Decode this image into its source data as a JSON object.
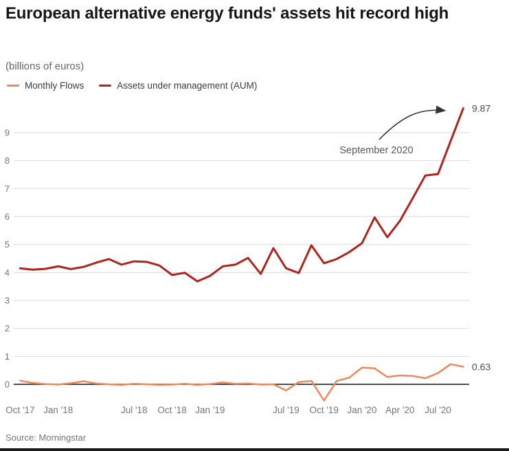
{
  "header": {
    "title": "European alternative energy funds' assets hit record high",
    "subtitle": "(billions of euros)"
  },
  "legend": [
    {
      "label": "Monthly Flows",
      "color": "#ef875a"
    },
    {
      "label": "Assets under management (AUM)",
      "color": "#b0231d"
    }
  ],
  "annotation": {
    "text": "September 2020"
  },
  "end_labels": {
    "aum": "9.87",
    "flows": "0.63"
  },
  "source": "Source: Morningstar",
  "colors": {
    "gridline": "#d9d9d9",
    "zero_line": "#4d4d4d",
    "tick_label": "#757575",
    "annotation_text": "#595959",
    "arrow": "#333333",
    "end_label": "#4d4d4d"
  },
  "chart_data": {
    "type": "line",
    "title": "European alternative energy funds' assets hit record high",
    "subtitle": "(billions of euros)",
    "xlabel": "",
    "ylabel": "billions of euros",
    "ylim": [
      -0.7,
      10
    ],
    "yticks": [
      0,
      1,
      2,
      3,
      4,
      5,
      6,
      7,
      8,
      9
    ],
    "grid": true,
    "legend_position": "top-left",
    "annotations": [
      {
        "text": "September 2020",
        "points_to": "Sep '20 AUM value 9.87"
      }
    ],
    "x": [
      "Oct '17",
      "Nov '17",
      "Dec '17",
      "Jan '18",
      "Feb '18",
      "Mar '18",
      "Apr '18",
      "May '18",
      "Jun '18",
      "Jul '18",
      "Aug '18",
      "Sep '18",
      "Oct '18",
      "Nov '18",
      "Dec '18",
      "Jan '19",
      "Feb '19",
      "Mar '19",
      "Apr '19",
      "May '19",
      "Jun '19",
      "Jul '19",
      "Aug '19",
      "Sep '19",
      "Oct '19",
      "Nov '19",
      "Dec '19",
      "Jan '20",
      "Feb '20",
      "Mar '20",
      "Apr '20",
      "May '20",
      "Jun '20",
      "Jul '20",
      "Aug '20",
      "Sep '20"
    ],
    "x_tick_labels": [
      {
        "label": "Oct '17",
        "i": 0
      },
      {
        "label": "Jan '18",
        "i": 3
      },
      {
        "label": "Jul '18",
        "i": 9
      },
      {
        "label": "Oct '18",
        "i": 12
      },
      {
        "label": "Jan '19",
        "i": 15
      },
      {
        "label": "Jul '19",
        "i": 21
      },
      {
        "label": "Oct '19",
        "i": 24
      },
      {
        "label": "Jan '20",
        "i": 27
      },
      {
        "label": "Apr '20",
        "i": 30
      },
      {
        "label": "Jul '20",
        "i": 33
      }
    ],
    "series": [
      {
        "name": "Monthly Flows",
        "color": "#ef875a",
        "end_label": "0.63",
        "values": [
          0.13,
          0.05,
          0.01,
          -0.01,
          0.04,
          0.11,
          0.03,
          0.0,
          -0.02,
          0.02,
          0.0,
          -0.02,
          -0.01,
          0.02,
          -0.02,
          0.01,
          0.07,
          0.02,
          0.03,
          -0.01,
          0.0,
          -0.22,
          0.08,
          0.12,
          -0.58,
          0.12,
          0.24,
          0.6,
          0.57,
          0.26,
          0.32,
          0.3,
          0.22,
          0.4,
          0.72,
          0.63
        ]
      },
      {
        "name": "Assets under management (AUM)",
        "color": "#b0231d",
        "end_label": "9.87",
        "values": [
          4.15,
          4.1,
          4.13,
          4.22,
          4.12,
          4.2,
          4.35,
          4.48,
          4.28,
          4.4,
          4.38,
          4.25,
          3.91,
          3.99,
          3.68,
          3.88,
          4.22,
          4.28,
          4.52,
          3.95,
          4.87,
          4.15,
          3.98,
          4.97,
          4.33,
          4.48,
          4.73,
          5.05,
          5.97,
          5.26,
          5.85,
          6.65,
          7.47,
          7.52,
          8.7,
          9.87
        ]
      }
    ]
  }
}
